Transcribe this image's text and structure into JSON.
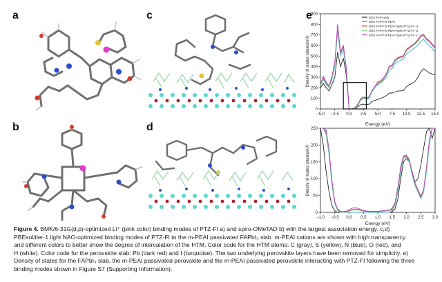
{
  "panels": {
    "a": "a",
    "b": "b",
    "c": "c",
    "d": "d",
    "e": "e"
  },
  "caption": {
    "label": "Figure 4.",
    "lines": [
      "BMK/6-31G(d,p)-optimized Li⁺ (pink color) binding modes of PTZ-FI a) and spiro-OMeTAD b) with the largest association energy. c,d)",
      "PBEsol/tier-1 light NAO-optimized binding modes of PTZ-FI to the m-PEAI passivated FAPbI₃ slab. m-PEAI cations are shown with high transparency",
      "and different colors to better show the degree of intercalation of the HTM. Color code for the HTM atoms: C (gray), S (yellow), N (blue), O (red), and",
      "H (white). Color code for the perovskite slab: Pb (dark red) and I (turquoise). The two underlying perovskite layers have been removed for simplicity. e)",
      "Density of states for the FAPbI₃ slab, the m-PEAI passivated perovskite and the m-PEAI passivated perovskite interacting with PTZ-FI following the three",
      "binding modes shown in Figure S7 (Supporting Information)."
    ]
  },
  "chart_data": [
    {
      "type": "line",
      "panel": "e-top",
      "xlabel": "Energy (eV)",
      "ylabel": "Density of states (states/eV)",
      "xlim": [
        -5.0,
        15.0
      ],
      "ylim": [
        0,
        900
      ],
      "x_ticks": [
        "−5.0",
        "−2.5",
        "0.0",
        "2.5",
        "5.0",
        "7.5",
        "10.0",
        "12.5",
        "15.0"
      ],
      "y_ticks": [
        "0",
        "100",
        "200",
        "300",
        "400",
        "500",
        "600",
        "700",
        "800",
        "900"
      ],
      "legend_position": "top-right",
      "x": [
        -5.0,
        -4.5,
        -4.0,
        -3.5,
        -3.0,
        -2.5,
        -2.0,
        -1.5,
        -1.0,
        -0.5,
        0.0,
        0.5,
        1.0,
        1.5,
        2.0,
        2.5,
        3.0,
        3.5,
        4.0,
        4.5,
        5.0,
        5.5,
        6.0,
        6.5,
        7.0,
        7.5,
        8.0,
        8.5,
        9.0,
        9.5,
        10.0,
        10.5,
        11.0,
        11.5,
        12.0,
        12.5,
        13.0,
        13.5,
        14.0,
        14.5,
        15.0
      ],
      "series": [
        {
          "name": "DOS FAPI slab",
          "color": "#222222",
          "values": [
            200,
            240,
            200,
            170,
            230,
            300,
            540,
            400,
            480,
            320,
            0,
            0,
            5,
            20,
            40,
            45,
            40,
            45,
            70,
            80,
            90,
            100,
            110,
            125,
            150,
            150,
            160,
            170,
            170,
            175,
            210,
            230,
            240,
            260,
            300,
            350,
            380,
            360,
            340,
            330,
            320
          ]
        },
        {
          "name": "DOS FAPI+m-PEAI",
          "color": "#4aa8d8",
          "values": [
            220,
            280,
            230,
            200,
            280,
            400,
            740,
            500,
            560,
            360,
            0,
            0,
            5,
            30,
            80,
            100,
            90,
            100,
            160,
            200,
            230,
            240,
            270,
            300,
            370,
            380,
            430,
            450,
            460,
            470,
            520,
            540,
            560,
            580,
            600,
            640,
            660,
            620,
            600,
            570,
            540
          ]
        },
        {
          "name": "DOS FAPI+m-PEAI+spiro-PTZ-FI - a",
          "color": "#d03a30",
          "values": [
            230,
            300,
            250,
            210,
            300,
            430,
            790,
            530,
            590,
            380,
            0,
            0,
            10,
            40,
            90,
            110,
            100,
            110,
            170,
            210,
            250,
            260,
            290,
            330,
            400,
            410,
            460,
            480,
            490,
            500,
            560,
            580,
            600,
            620,
            650,
            690,
            700,
            660,
            640,
            610,
            580
          ]
        },
        {
          "name": "DOS FAPI+m-PEAI+spiro-PTZ-FI - b",
          "color": "#7fc97f",
          "values": [
            225,
            290,
            240,
            205,
            290,
            420,
            770,
            520,
            580,
            370,
            0,
            0,
            8,
            35,
            85,
            105,
            95,
            105,
            165,
            205,
            240,
            250,
            280,
            320,
            390,
            400,
            450,
            470,
            480,
            490,
            550,
            570,
            590,
            610,
            640,
            680,
            690,
            650,
            630,
            600,
            570
          ]
        },
        {
          "name": "DOS FAPI+m-PEAI+spiro-PTZ-FI - c",
          "color": "#b040c0",
          "values": [
            235,
            310,
            255,
            215,
            310,
            440,
            800,
            540,
            600,
            390,
            0,
            0,
            12,
            45,
            95,
            115,
            105,
            115,
            175,
            215,
            255,
            265,
            295,
            335,
            405,
            415,
            465,
            485,
            495,
            505,
            565,
            585,
            605,
            625,
            655,
            695,
            705,
            665,
            645,
            615,
            585
          ]
        }
      ]
    },
    {
      "type": "line",
      "panel": "e-bottom",
      "xlabel": "Energy (eV)",
      "ylabel": "Density of states (states/eV)",
      "xlim": [
        -1.0,
        3.0
      ],
      "ylim": [
        0,
        250
      ],
      "x_ticks": [
        "−1.0",
        "−0.5",
        "0.0",
        "0.5",
        "1.0",
        "1.5",
        "2.0",
        "2.5",
        "3.0"
      ],
      "y_ticks": [
        "0",
        "50",
        "100",
        "150",
        "200",
        "250"
      ],
      "x": [
        -1.0,
        -0.9,
        -0.8,
        -0.7,
        -0.6,
        -0.5,
        -0.4,
        -0.3,
        -0.2,
        -0.1,
        0.0,
        0.1,
        0.2,
        0.3,
        0.4,
        0.5,
        0.6,
        0.7,
        0.8,
        0.9,
        1.0,
        1.1,
        1.2,
        1.3,
        1.4,
        1.5,
        1.6,
        1.7,
        1.8,
        1.9,
        2.0,
        2.1,
        2.2,
        2.3,
        2.4,
        2.5,
        2.6,
        2.7,
        2.8,
        2.9,
        3.0
      ],
      "series": [
        {
          "name": "DOS FAPI slab",
          "color": "#222222",
          "values": [
            250,
            200,
            120,
            60,
            20,
            4,
            0,
            0,
            0,
            0,
            0,
            0,
            0,
            0,
            0,
            0,
            0,
            0,
            0,
            0,
            0,
            0,
            0,
            0,
            0,
            2,
            10,
            40,
            100,
            150,
            160,
            150,
            120,
            90,
            100,
            140,
            190,
            240,
            250,
            220,
            250
          ]
        },
        {
          "name": "DOS FAPI+m-PEAI",
          "color": "#4aa8d8",
          "values": [
            250,
            250,
            230,
            170,
            80,
            25,
            5,
            0,
            0,
            0,
            0,
            0,
            0,
            0,
            0,
            0,
            0,
            0,
            0,
            0,
            0,
            0,
            0,
            0,
            0,
            5,
            20,
            60,
            120,
            160,
            165,
            150,
            110,
            80,
            60,
            40,
            60,
            120,
            200,
            250,
            250
          ]
        },
        {
          "name": "DOS FAPI+m-PEAI+spiro-PTZ-FI - a",
          "color": "#d03a30",
          "values": [
            250,
            250,
            240,
            180,
            90,
            30,
            8,
            2,
            0,
            2,
            5,
            8,
            10,
            9,
            6,
            4,
            3,
            2,
            2,
            2,
            2,
            3,
            4,
            5,
            6,
            10,
            25,
            70,
            130,
            165,
            168,
            155,
            115,
            85,
            65,
            45,
            65,
            130,
            210,
            250,
            250
          ]
        },
        {
          "name": "DOS FAPI+m-PEAI+spiro-PTZ-FI - b",
          "color": "#7fc97f",
          "values": [
            250,
            250,
            235,
            175,
            85,
            28,
            6,
            1,
            0,
            1,
            3,
            6,
            8,
            7,
            5,
            3,
            2,
            2,
            1,
            1,
            2,
            2,
            3,
            4,
            5,
            8,
            22,
            65,
            125,
            162,
            166,
            152,
            112,
            82,
            62,
            42,
            62,
            125,
            205,
            250,
            250
          ]
        },
        {
          "name": "DOS FAPI+m-PEAI+spiro-PTZ-FI - c",
          "color": "#b040c0",
          "values": [
            250,
            250,
            245,
            185,
            95,
            32,
            10,
            3,
            2,
            4,
            8,
            12,
            14,
            12,
            9,
            6,
            4,
            3,
            3,
            3,
            3,
            4,
            5,
            6,
            7,
            12,
            28,
            75,
            135,
            168,
            170,
            158,
            118,
            88,
            68,
            48,
            68,
            135,
            215,
            250,
            250
          ]
        }
      ]
    }
  ]
}
